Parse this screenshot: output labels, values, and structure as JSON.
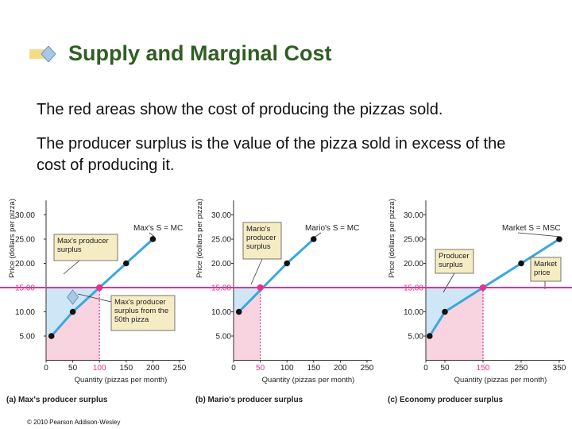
{
  "slide": {
    "title": "Supply and Marginal Cost",
    "paragraph1": "The red areas show the cost of producing the pizzas sold.",
    "paragraph2": "The producer surplus is the value of the pizza sold in excess of the cost of producing it.",
    "copyright": "© 2010 Pearson Addison-Wesley"
  },
  "colors": {
    "title": "#2f5f22",
    "supply_line": "#3aa7df",
    "surplus_fill": "#cfe6f6",
    "cost_fill": "#f8d4e0",
    "price_line": "#e0348f",
    "callout_fill": "#f6ecc4"
  },
  "chart_data": [
    {
      "type": "line",
      "ylabel": "Price (dollars per pizza)",
      "xlabel": "Quantity (pizzas per month)",
      "caption": "(a) Max's producer surplus",
      "series_label": "Max's S = MC",
      "xlim": [
        0,
        250
      ],
      "ylim": [
        0,
        32
      ],
      "x_ticks": [
        0,
        50,
        100,
        150,
        200,
        250
      ],
      "y_ticks": [
        5,
        10,
        15,
        20,
        25,
        30
      ],
      "y_tick_labels": [
        "5.00",
        "10.00",
        "15.00",
        "20.00",
        "25.00",
        "30.00"
      ],
      "points": [
        [
          10,
          5
        ],
        [
          50,
          10
        ],
        [
          150,
          20
        ],
        [
          200,
          25
        ]
      ],
      "price": 15,
      "quantity": 100,
      "price_label": "15.00",
      "quantity_label": "100",
      "callouts": [
        {
          "text": [
            "Max's producer",
            "surplus"
          ]
        },
        {
          "text": [
            "Max's producer",
            "surplus from the",
            "50th pizza"
          ]
        }
      ]
    },
    {
      "type": "line",
      "ylabel": "Price (dollars per pizza)",
      "xlabel": "Quantity (pizzas per month)",
      "caption": "(b) Mario's producer surplus",
      "series_label": "Mario's S = MC",
      "xlim": [
        0,
        250
      ],
      "ylim": [
        0,
        32
      ],
      "x_ticks": [
        0,
        50,
        100,
        150,
        200,
        250
      ],
      "y_ticks": [
        5,
        10,
        15,
        20,
        25,
        30
      ],
      "y_tick_labels": [
        "5.00",
        "10.00",
        "15.00",
        "20.00",
        "25.00",
        "30.00"
      ],
      "points": [
        [
          10,
          10
        ],
        [
          100,
          20
        ],
        [
          150,
          25
        ]
      ],
      "price": 15,
      "quantity": 50,
      "price_label": "15.00",
      "quantity_label": "50",
      "callouts": [
        {
          "text": [
            "Mario's",
            "producer",
            "surplus"
          ]
        }
      ]
    },
    {
      "type": "line",
      "ylabel": "Price (dollars per pizza)",
      "xlabel": "Quantity (pizzas per month)",
      "caption": "(c) Economy producer surplus",
      "series_label": "Market S = MSC",
      "xlim": [
        0,
        350
      ],
      "ylim": [
        0,
        32
      ],
      "x_ticks": [
        0,
        50,
        150,
        250,
        350
      ],
      "x_tick_labels": [
        "0",
        "50",
        "150",
        "250",
        "350"
      ],
      "y_ticks": [
        5,
        10,
        15,
        20,
        25,
        30
      ],
      "y_tick_labels": [
        "5.00",
        "10.00",
        "15.00",
        "20.00",
        "25.00",
        "30.00"
      ],
      "points": [
        [
          10,
          5
        ],
        [
          50,
          10
        ],
        [
          250,
          20
        ],
        [
          350,
          25
        ]
      ],
      "price": 15,
      "quantity": 150,
      "price_label": "15.00",
      "quantity_label": "150",
      "callouts": [
        {
          "text": [
            "Producer",
            "surplus"
          ]
        },
        {
          "text": [
            "Market",
            "price"
          ]
        }
      ]
    }
  ]
}
